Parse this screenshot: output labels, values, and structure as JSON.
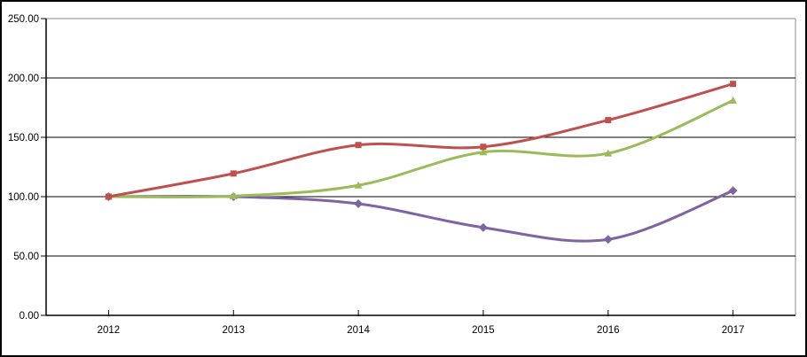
{
  "chart_data": {
    "type": "line",
    "title": "",
    "xlabel": "",
    "ylabel": "",
    "categories": [
      "2012",
      "2013",
      "2014",
      "2015",
      "2016",
      "2017"
    ],
    "series": [
      {
        "name": "purple-diamond-series",
        "marker": "diamond",
        "color": "#8064A2",
        "values": [
          100,
          100,
          94,
          74,
          64,
          105
        ]
      },
      {
        "name": "green-triangle-series",
        "marker": "triangle",
        "color": "#9BBB59",
        "values": [
          100,
          100.5,
          109.5,
          137.5,
          136.5,
          181
        ]
      },
      {
        "name": "red-square-series",
        "marker": "square",
        "color": "#C0504D",
        "values": [
          100,
          119.5,
          143.5,
          142,
          164.5,
          195
        ]
      }
    ],
    "y_ticks": [
      "0.00",
      "50.00",
      "100.00",
      "150.00",
      "200.00",
      "250.00"
    ],
    "y_tick_values": [
      0,
      50,
      100,
      150,
      200,
      250
    ],
    "ylim": [
      0,
      250
    ],
    "grid": true,
    "smoothed": true,
    "legend": "none",
    "colors": {
      "gridline": "#000000",
      "axis": "#000000",
      "plot_frame": "#8C8C8C",
      "outer_border": "#000000",
      "background": "#FFFFFF",
      "tick_label": "#000000"
    }
  }
}
